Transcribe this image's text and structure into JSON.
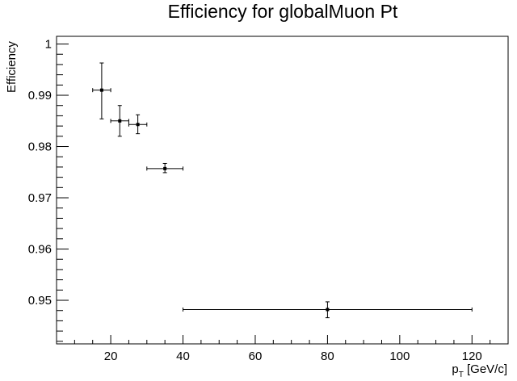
{
  "chart_data": {
    "type": "scatter",
    "title": "Efficiency for globalMuon Pt",
    "xlabel": {
      "main": "p",
      "sub": "T",
      "suffix": " [GeV/c]"
    },
    "ylabel": "Efficiency",
    "xlim": [
      5,
      130
    ],
    "ylim": [
      0.9415,
      1.0015
    ],
    "x_ticks": [
      20,
      40,
      60,
      80,
      100,
      120
    ],
    "y_ticks": [
      0.95,
      0.96,
      0.97,
      0.98,
      0.99,
      1
    ],
    "x_tick_labels": [
      "20",
      "40",
      "60",
      "80",
      "100",
      "120"
    ],
    "y_tick_labels": [
      "0.95",
      "0.96",
      "0.97",
      "0.98",
      "0.99",
      "1"
    ],
    "grid": false,
    "legend": "none",
    "series": [
      {
        "points": [
          {
            "x": 17.5,
            "xlo": 15,
            "xhi": 20,
            "y": 0.991,
            "ylo": 0.9854,
            "yhi": 0.9963
          },
          {
            "x": 22.5,
            "xlo": 20,
            "xhi": 25,
            "y": 0.985,
            "ylo": 0.982,
            "yhi": 0.988
          },
          {
            "x": 27.5,
            "xlo": 25,
            "xhi": 30,
            "y": 0.9843,
            "ylo": 0.9825,
            "yhi": 0.9862
          },
          {
            "x": 35,
            "xlo": 30,
            "xhi": 40,
            "y": 0.9757,
            "ylo": 0.9749,
            "yhi": 0.9767
          },
          {
            "x": 80,
            "xlo": 40,
            "xhi": 120,
            "y": 0.9482,
            "ylo": 0.9466,
            "yhi": 0.9497
          }
        ]
      }
    ]
  }
}
